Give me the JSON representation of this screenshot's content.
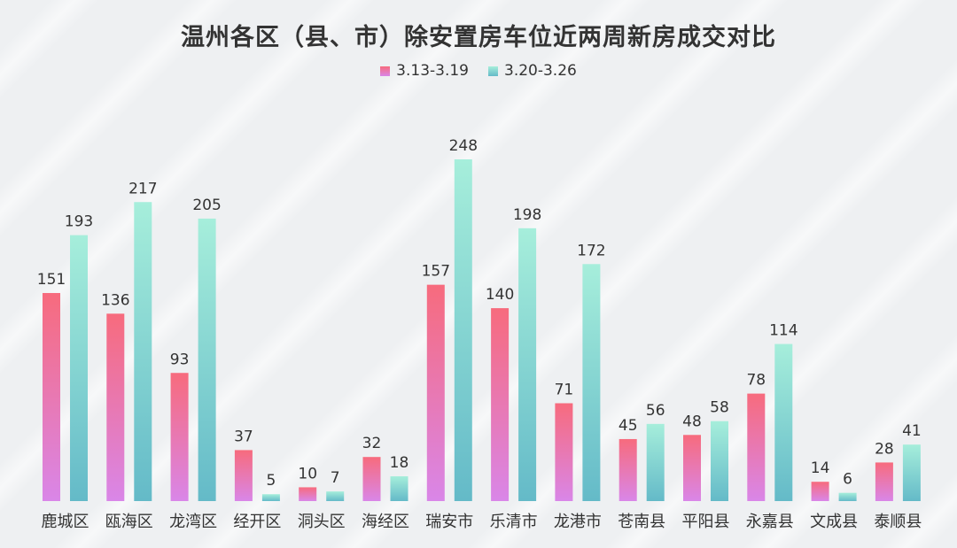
{
  "chart_data": {
    "type": "bar",
    "title": "温州各区（县、市）除安置房车位近两周新房成交对比",
    "categories": [
      "鹿城区",
      "瓯海区",
      "龙湾区",
      "经开区",
      "洞头区",
      "海经区",
      "瑞安市",
      "乐清市",
      "龙港市",
      "苍南县",
      "平阳县",
      "永嘉县",
      "文成县",
      "泰顺县"
    ],
    "series": [
      {
        "name": "3.13-3.19",
        "values": [
          151,
          136,
          93,
          37,
          10,
          32,
          157,
          140,
          71,
          45,
          48,
          78,
          14,
          28
        ],
        "color_top": "#f76b7d",
        "color_bottom": "#d986e8"
      },
      {
        "name": "3.20-3.26",
        "values": [
          193,
          217,
          205,
          5,
          7,
          18,
          248,
          198,
          172,
          56,
          58,
          114,
          6,
          41
        ],
        "color_top": "#a6eedb",
        "color_bottom": "#64bac8"
      }
    ],
    "ylim": [
      0,
      248
    ],
    "grid": false,
    "legend_position": "top-center"
  }
}
